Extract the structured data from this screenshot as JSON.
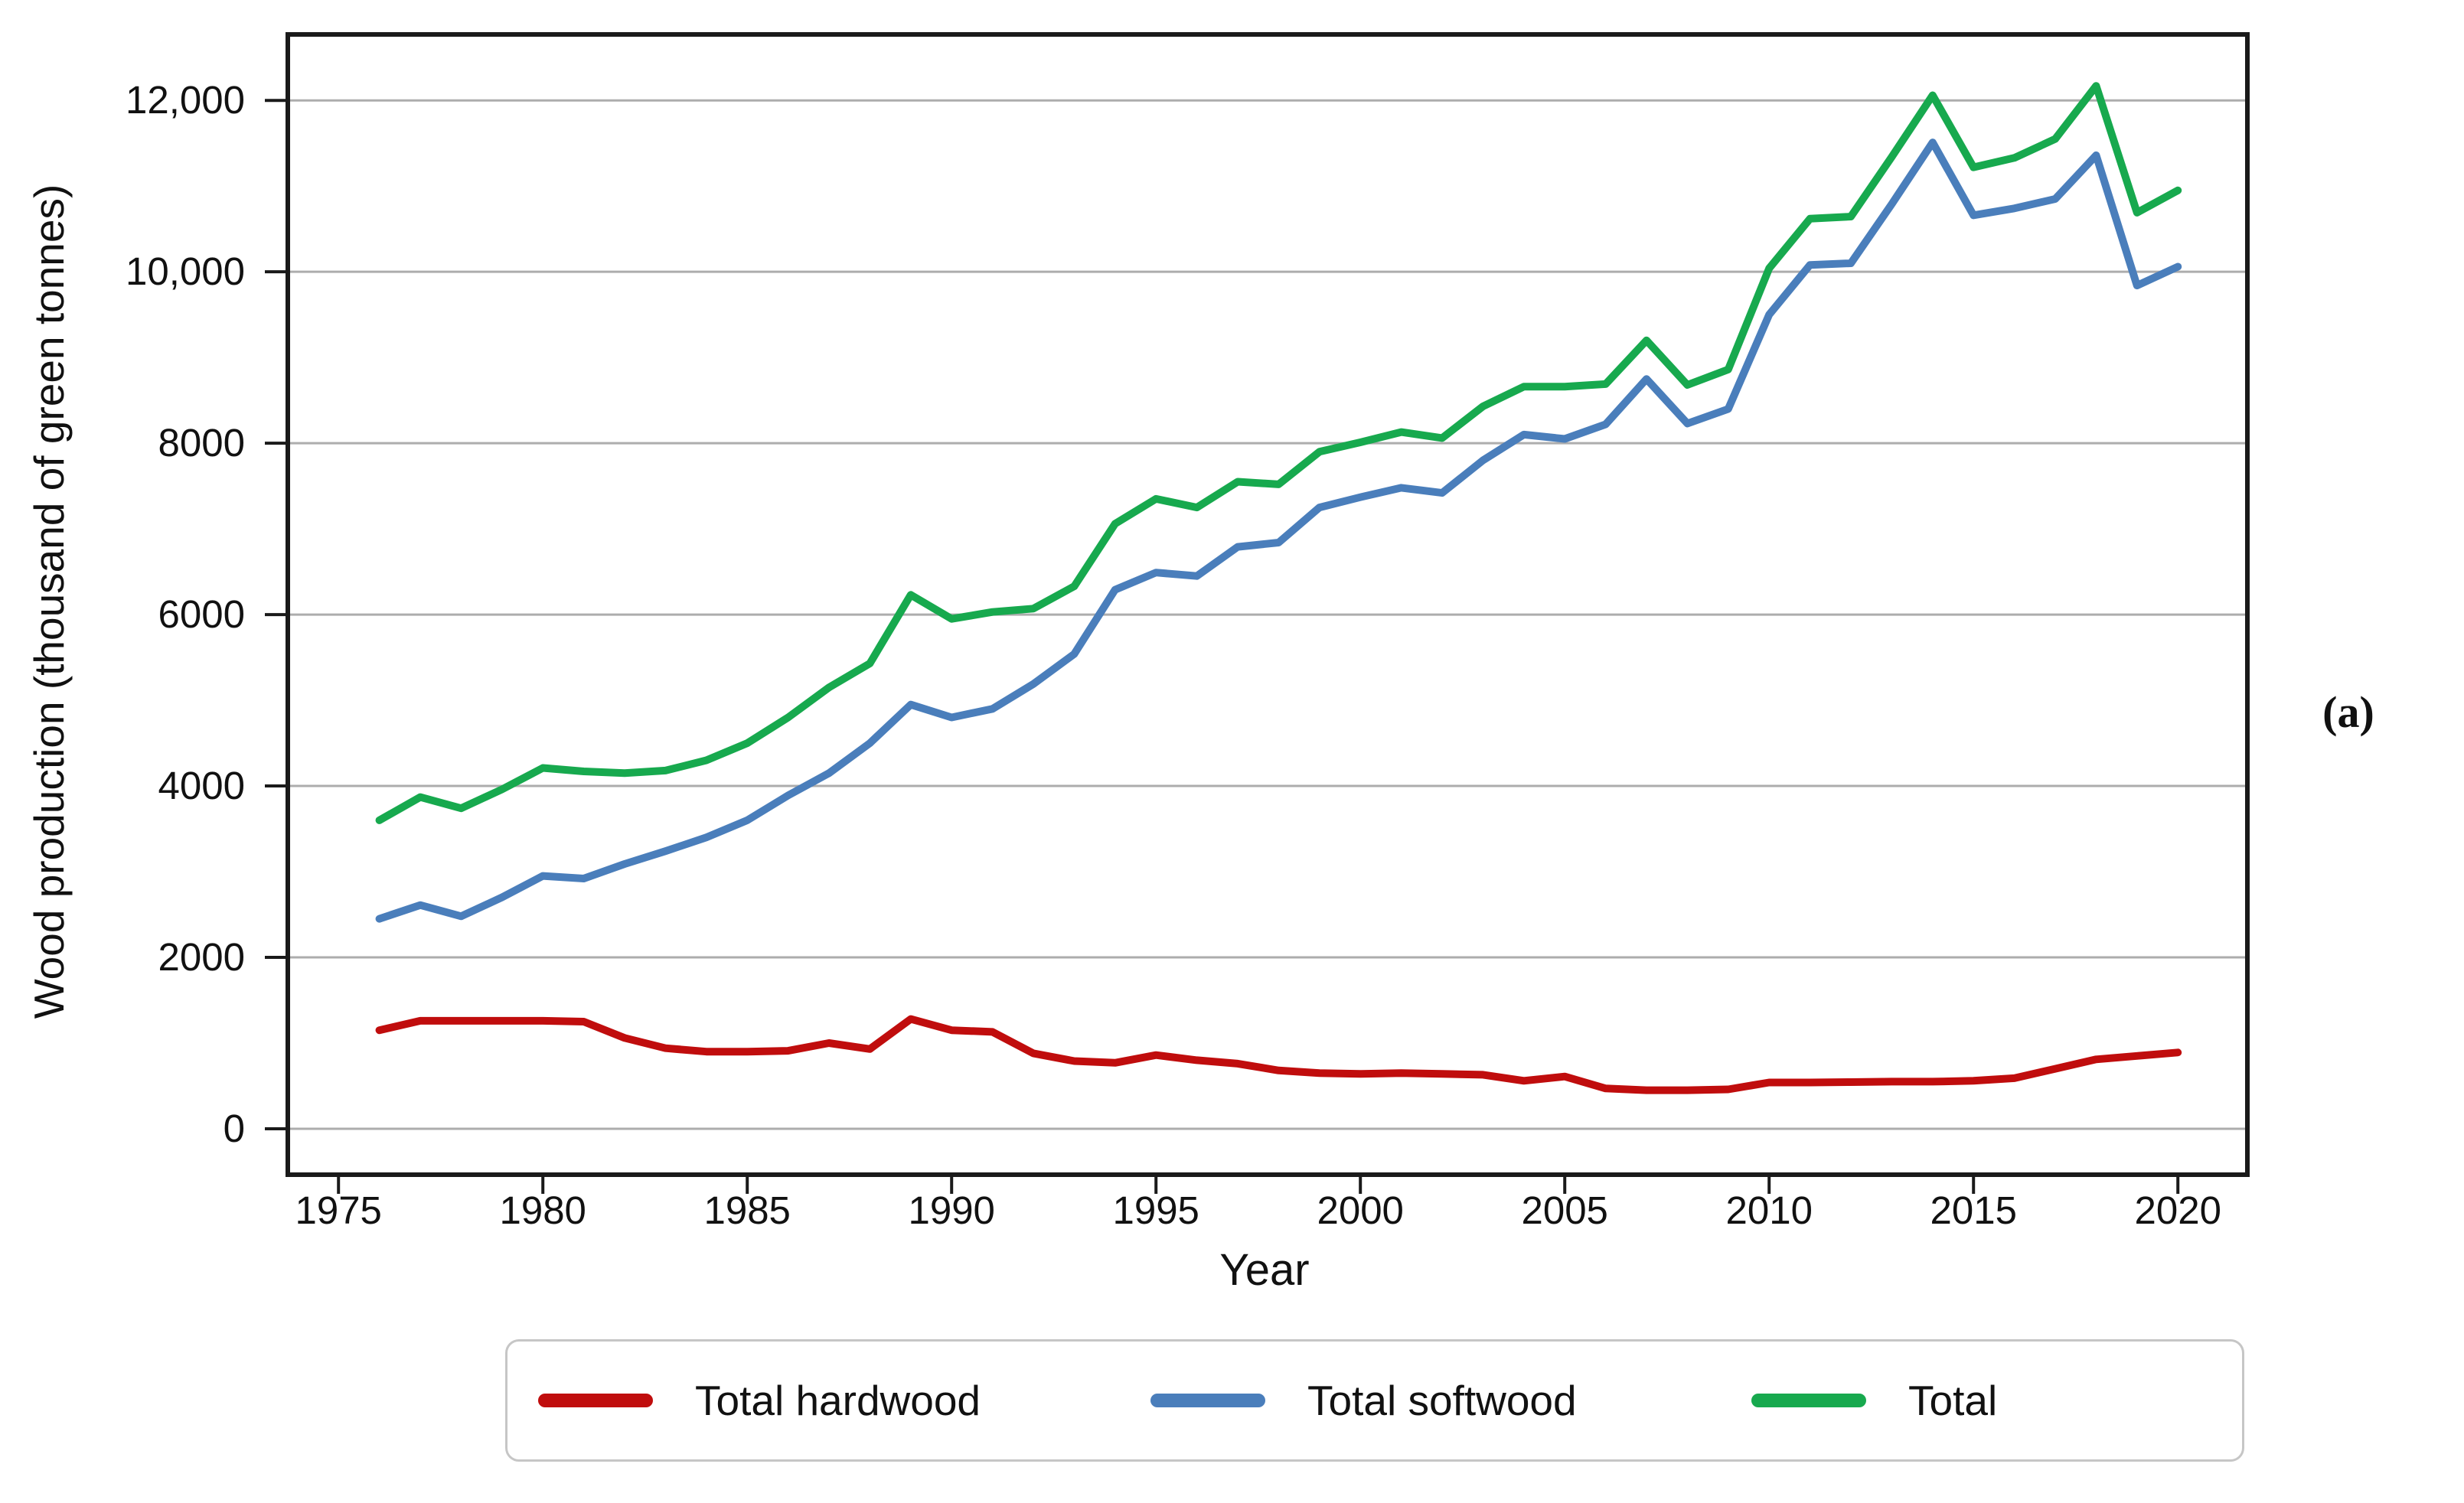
{
  "figure": {
    "panel_label": "(a)",
    "background": "#ffffff",
    "colors": {
      "hardwood_line": "#C00D0D",
      "softwood_line": "#4A7EBB",
      "total_line": "#17A94E",
      "gridline": "#ADADAD",
      "plot_border": "#1a1a1a",
      "tick": "#1a1a1a",
      "text": "#111111",
      "legend_border": "#c6c6c6"
    }
  },
  "chart_data": {
    "type": "line",
    "title": "",
    "xlabel": "Year",
    "ylabel": "Wood production (thousand of green tonnes)",
    "grid": "horizontal",
    "legend_position": "bottom",
    "xlim": [
      1973.76,
      2021.7
    ],
    "ylim": [
      -536,
      12770
    ],
    "x_ticks": [
      1975,
      1980,
      1985,
      1990,
      1995,
      2000,
      2005,
      2010,
      2015,
      2020
    ],
    "y_ticks": [
      0,
      2000,
      4000,
      6000,
      8000,
      10000,
      12000
    ],
    "y_tick_labels": [
      "0",
      "2000",
      "4000",
      "6000",
      "8000",
      "10,000",
      "12,000"
    ],
    "x": [
      1976,
      1977,
      1978,
      1979,
      1980,
      1981,
      1982,
      1983,
      1984,
      1985,
      1986,
      1987,
      1988,
      1989,
      1990,
      1991,
      1992,
      1993,
      1994,
      1995,
      1996,
      1997,
      1998,
      1999,
      2000,
      2001,
      2002,
      2003,
      2004,
      2005,
      2006,
      2007,
      2008,
      2009,
      2010,
      2011,
      2012,
      2013,
      2014,
      2015,
      2016,
      2017,
      2018,
      2019,
      2020
    ],
    "series": [
      {
        "name": "Total hardwood",
        "color": "#C00D0D",
        "values": [
          1150,
          1260,
          1260,
          1260,
          1260,
          1250,
          1060,
          940,
          900,
          900,
          910,
          1000,
          930,
          1280,
          1150,
          1130,
          880,
          790,
          770,
          860,
          800,
          760,
          680,
          650,
          640,
          650,
          640,
          630,
          560,
          610,
          470,
          450,
          450,
          460,
          540,
          540,
          545,
          550,
          550,
          560,
          590,
          700,
          810,
          850,
          890
        ]
      },
      {
        "name": "Total softwood",
        "color": "#4A7EBB",
        "values": [
          2450,
          2610,
          2480,
          2700,
          2950,
          2920,
          3090,
          3240,
          3400,
          3600,
          3890,
          4150,
          4500,
          4950,
          4800,
          4900,
          5190,
          5540,
          6290,
          6490,
          6450,
          6790,
          6840,
          7250,
          7370,
          7480,
          7420,
          7800,
          8100,
          8050,
          8220,
          8750,
          8230,
          8400,
          9500,
          10080,
          10100,
          10790,
          11510,
          10660,
          10740,
          10850,
          11360,
          9840,
          10060
        ]
      },
      {
        "name": "Total",
        "color": "#17A94E",
        "values": [
          3600,
          3870,
          3740,
          3960,
          4210,
          4170,
          4150,
          4180,
          4300,
          4500,
          4800,
          5150,
          5430,
          6230,
          5950,
          6030,
          6070,
          6330,
          7060,
          7350,
          7250,
          7550,
          7520,
          7900,
          8010,
          8130,
          8060,
          8430,
          8660,
          8660,
          8690,
          9200,
          8680,
          8860,
          10040,
          10620,
          10645,
          11340,
          12060,
          11220,
          11330,
          11550,
          12170,
          10690,
          10950
        ]
      }
    ]
  }
}
